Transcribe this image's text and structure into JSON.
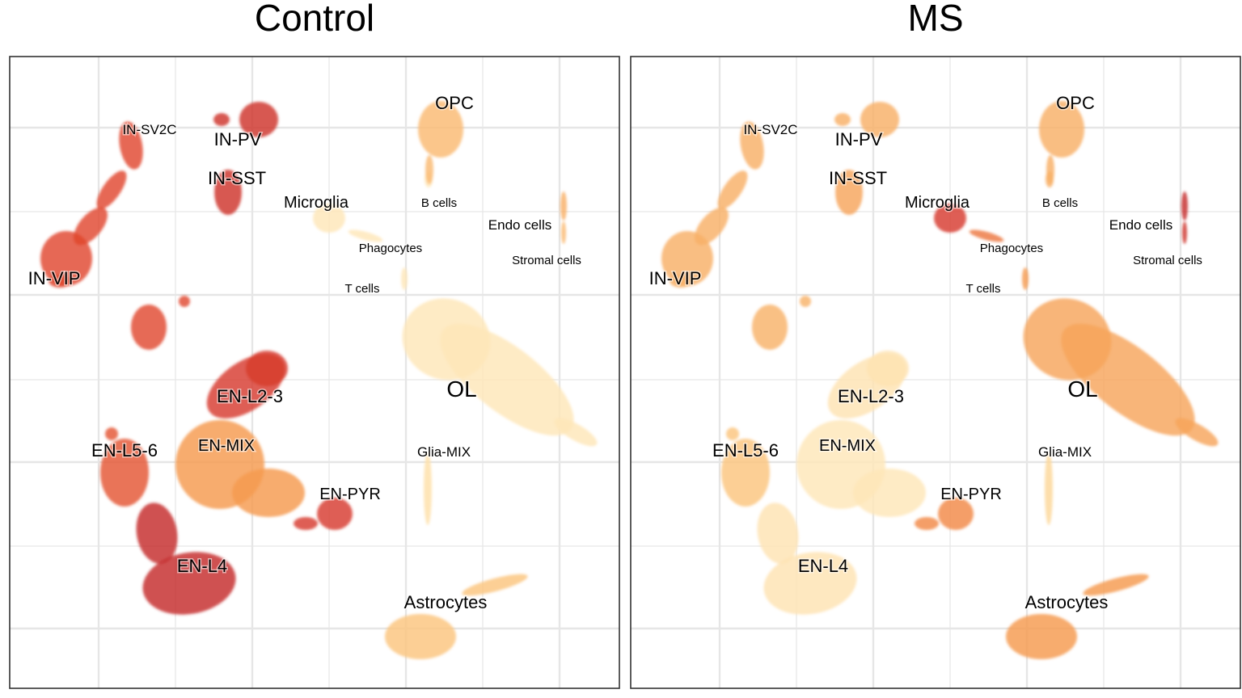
{
  "chart_data": [
    {
      "type": "scatter",
      "title": "Control",
      "grid": true,
      "legend": "none",
      "color_scale": [
        "#fff5d6",
        "#fdd08a",
        "#f59a4e",
        "#e0452d",
        "#b2182b"
      ],
      "clusters": [
        {
          "name": "IN-SV2C",
          "size": "s",
          "level": 0.75
        },
        {
          "name": "IN-PV",
          "size": "l",
          "level": 0.85
        },
        {
          "name": "IN-SST",
          "size": "l",
          "level": 0.85
        },
        {
          "name": "IN-VIP",
          "size": "l",
          "level": 0.75
        },
        {
          "name": "Microglia",
          "size": "m",
          "level": 0.1
        },
        {
          "name": "Phagocytes",
          "size": "xs",
          "level": 0.1
        },
        {
          "name": "T cells",
          "size": "xs",
          "level": 0.1
        },
        {
          "name": "B cells",
          "size": "xs",
          "level": 0.1
        },
        {
          "name": "OPC",
          "size": "l",
          "level": 0.35
        },
        {
          "name": "Endo cells",
          "size": "s",
          "level": 0.4
        },
        {
          "name": "Stromal cells",
          "size": "xs",
          "level": 0.35
        },
        {
          "name": "OL",
          "size": "xl",
          "level": 0.1
        },
        {
          "name": "Glia-MIX",
          "size": "s",
          "level": 0.15
        },
        {
          "name": "EN-L2-3",
          "size": "l",
          "level": 0.8
        },
        {
          "name": "EN-MIX",
          "size": "m",
          "level": 0.5
        },
        {
          "name": "EN-L5-6",
          "size": "l",
          "level": 0.7
        },
        {
          "name": "EN-PYR",
          "size": "m",
          "level": 0.8
        },
        {
          "name": "EN-L4",
          "size": "l",
          "level": 0.9
        },
        {
          "name": "Astrocytes",
          "size": "l",
          "level": 0.3
        }
      ]
    },
    {
      "type": "scatter",
      "title": "MS",
      "grid": true,
      "legend": "none",
      "color_scale": [
        "#fff5d6",
        "#fdd08a",
        "#f59a4e",
        "#e0452d",
        "#b2182b"
      ],
      "clusters": [
        {
          "name": "IN-SV2C",
          "size": "s",
          "level": 0.4
        },
        {
          "name": "IN-PV",
          "size": "l",
          "level": 0.4
        },
        {
          "name": "IN-SST",
          "size": "l",
          "level": 0.45
        },
        {
          "name": "IN-VIP",
          "size": "l",
          "level": 0.4
        },
        {
          "name": "Microglia",
          "size": "m",
          "level": 0.8
        },
        {
          "name": "Phagocytes",
          "size": "xs",
          "level": 0.6
        },
        {
          "name": "T cells",
          "size": "xs",
          "level": 0.5
        },
        {
          "name": "B cells",
          "size": "xs",
          "level": 0.4
        },
        {
          "name": "OPC",
          "size": "l",
          "level": 0.4
        },
        {
          "name": "Endo cells",
          "size": "s",
          "level": 0.9
        },
        {
          "name": "Stromal cells",
          "size": "xs",
          "level": 0.85
        },
        {
          "name": "OL",
          "size": "xl",
          "level": 0.45
        },
        {
          "name": "Glia-MIX",
          "size": "s",
          "level": 0.2
        },
        {
          "name": "EN-L2-3",
          "size": "l",
          "level": 0.12
        },
        {
          "name": "EN-MIX",
          "size": "m",
          "level": 0.1
        },
        {
          "name": "EN-L5-6",
          "size": "l",
          "level": 0.3
        },
        {
          "name": "EN-PYR",
          "size": "m",
          "level": 0.55
        },
        {
          "name": "EN-L4",
          "size": "l",
          "level": 0.12
        },
        {
          "name": "Astrocytes",
          "size": "l",
          "level": 0.5
        }
      ]
    }
  ]
}
